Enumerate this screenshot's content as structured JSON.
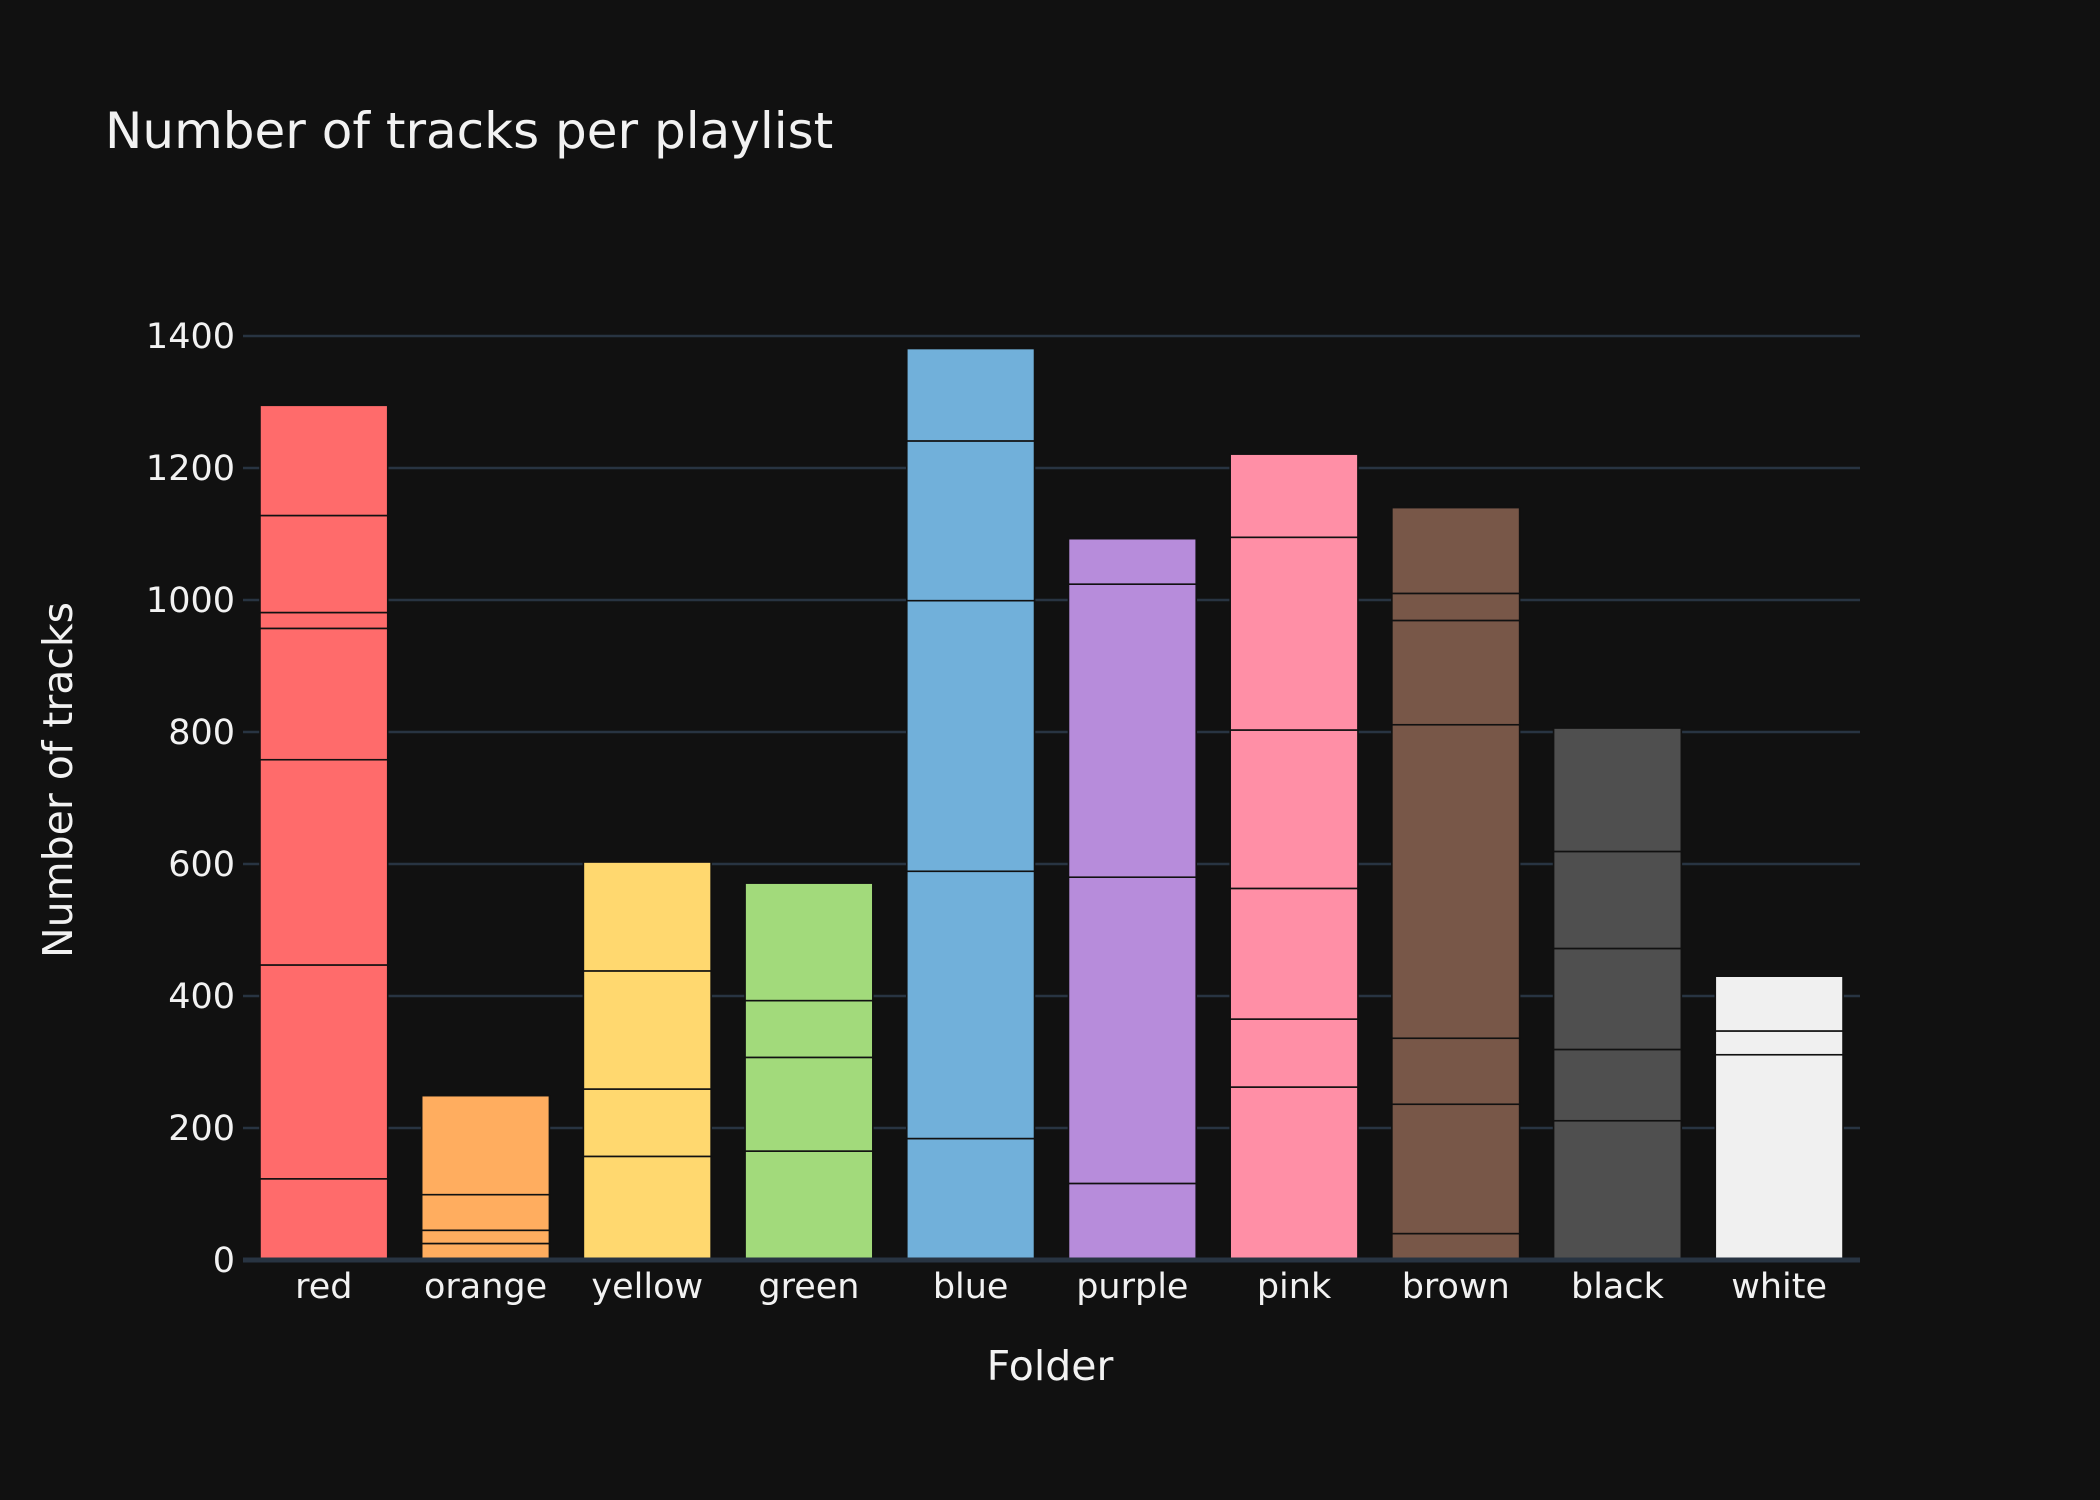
{
  "chart_data": {
    "type": "bar",
    "stacked": true,
    "title": "Number of tracks per playlist",
    "xlabel": "Folder",
    "ylabel": "Number of tracks",
    "ylim": [
      0,
      1400
    ],
    "yticks": [
      0,
      200,
      400,
      600,
      800,
      1000,
      1200,
      1400
    ],
    "grid": true,
    "legend": "none",
    "categories": [
      "red",
      "orange",
      "yellow",
      "green",
      "blue",
      "purple",
      "pink",
      "brown",
      "black",
      "white"
    ],
    "stacks": [
      {
        "category": "red",
        "color": "#ff6b6b",
        "segments": [
          123,
          324,
          311,
          199,
          24,
          147,
          167
        ]
      },
      {
        "category": "orange",
        "color": "#ffad5f",
        "segments": [
          25,
          20,
          54,
          150
        ]
      },
      {
        "category": "yellow",
        "color": "#ffd86f",
        "segments": [
          157,
          102,
          179,
          165
        ]
      },
      {
        "category": "green",
        "color": "#a2da7b",
        "segments": [
          165,
          142,
          86,
          178
        ]
      },
      {
        "category": "blue",
        "color": "#71b0da",
        "segments": [
          184,
          405,
          410,
          242,
          140
        ]
      },
      {
        "category": "purple",
        "color": "#b78cdb",
        "segments": [
          116,
          464,
          444,
          69,
          1
        ]
      },
      {
        "category": "pink",
        "color": "#ff8fa6",
        "segments": [
          262,
          103,
          198,
          240,
          292,
          126
        ]
      },
      {
        "category": "brown",
        "color": "#785748",
        "segments": [
          40,
          196,
          100,
          475,
          158,
          41,
          130
        ]
      },
      {
        "category": "black",
        "color": "#4f4f4f",
        "segments": [
          211,
          108,
          153,
          147,
          187
        ]
      },
      {
        "category": "white",
        "color": "#f0f0f0",
        "segments": [
          311,
          36,
          83
        ]
      }
    ]
  }
}
